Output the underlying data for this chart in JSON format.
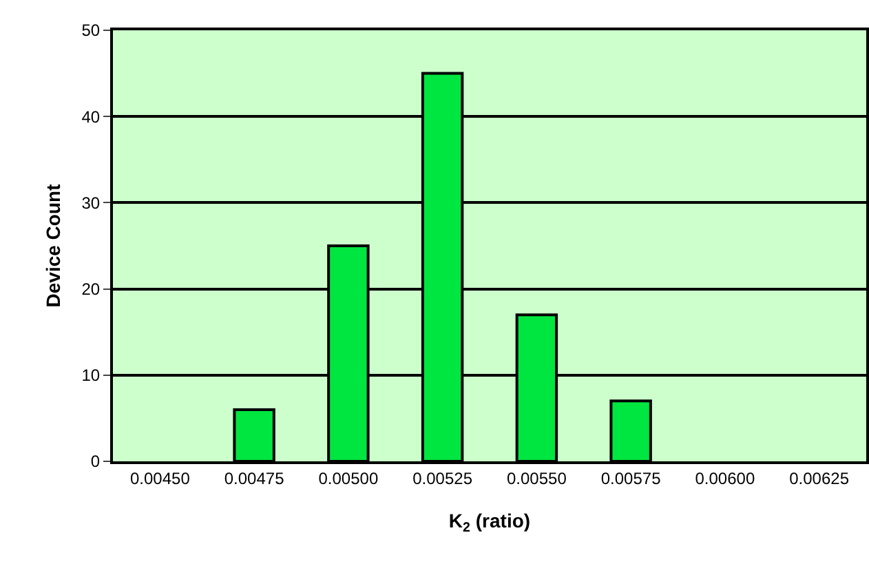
{
  "chart_data": {
    "type": "bar",
    "xlabel": "K$_{2}$ (ratio)",
    "ylabel": "Device Count",
    "categories": [
      "0.00450",
      "0.00475",
      "0.00500",
      "0.00525",
      "0.00550",
      "0.00575",
      "0.00600",
      "0.00625"
    ],
    "values": [
      0,
      6,
      25,
      45,
      17,
      7,
      0,
      0
    ],
    "color": "#00e640",
    "ylim": [
      0,
      50
    ],
    "yticks": [
      0,
      10,
      20,
      30,
      40,
      50
    ],
    "grid": "y",
    "legend": false
  }
}
